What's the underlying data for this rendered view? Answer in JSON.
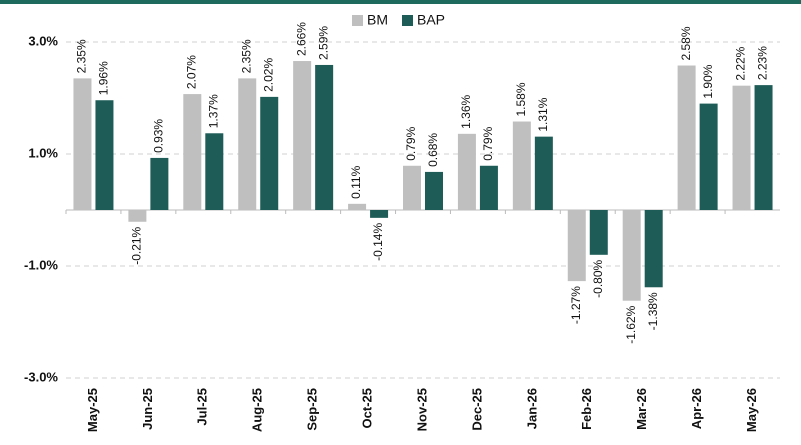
{
  "chart_data": {
    "type": "bar",
    "categories": [
      "May-25",
      "Jun-25",
      "Jul-25",
      "Aug-25",
      "Sep-25",
      "Oct-25",
      "Nov-25",
      "Dec-25",
      "Jan-26",
      "Feb-26",
      "Mar-26",
      "Apr-26",
      "May-26"
    ],
    "series": [
      {
        "name": "BM",
        "color": "#bfbfbf",
        "values": [
          2.35,
          -0.21,
          2.07,
          2.35,
          2.66,
          0.11,
          0.79,
          1.36,
          1.58,
          -1.27,
          -1.62,
          2.58,
          2.22
        ],
        "value_labels": [
          "2.35%",
          "-0.21%",
          "2.07%",
          "2.35%",
          "2.66%",
          "0.11%",
          "0.79%",
          "1.36%",
          "1.58%",
          "-1.27%",
          "-1.62%",
          "2.58%",
          "2.22%"
        ]
      },
      {
        "name": "BAP",
        "color": "#1d5c57",
        "values": [
          1.96,
          0.93,
          1.37,
          2.02,
          2.59,
          -0.14,
          0.68,
          0.79,
          1.31,
          -0.8,
          -1.38,
          1.9,
          2.23
        ],
        "value_labels": [
          "1.96%",
          "0.93%",
          "1.37%",
          "2.02%",
          "2.59%",
          "-0.14%",
          "0.68%",
          "0.79%",
          "1.31%",
          "-0.80%",
          "-1.38%",
          "1.90%",
          "2.23%"
        ]
      }
    ],
    "ylim": [
      -3,
      3
    ],
    "yticks": [
      {
        "value": 3,
        "label": "3.0%"
      },
      {
        "value": 1,
        "label": "1.0%"
      },
      {
        "value": -1,
        "label": "-1.0%"
      },
      {
        "value": -3,
        "label": "-3.0%"
      }
    ],
    "grid": true,
    "legend": "top"
  }
}
